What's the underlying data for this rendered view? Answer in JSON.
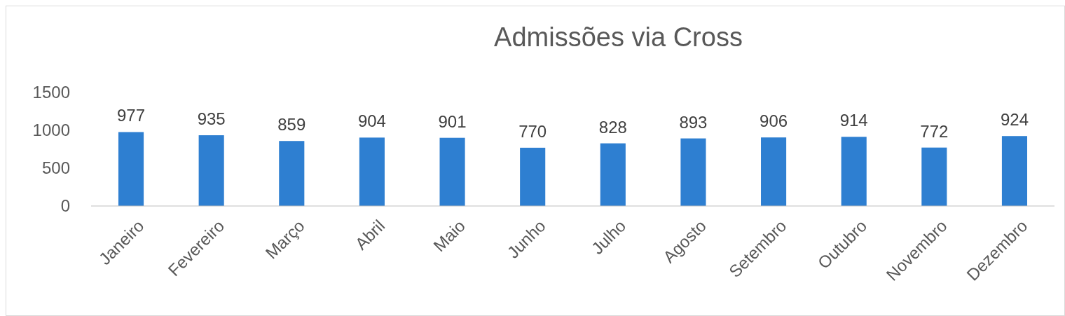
{
  "chart_data": {
    "type": "bar",
    "title": "Admissões via Cross",
    "categories": [
      "Janeiro",
      "Fevereiro",
      "Março",
      "Abril",
      "Maio",
      "Junho",
      "Julho",
      "Agosto",
      "Setembro",
      "Outubro",
      "Novembro",
      "Dezembro"
    ],
    "values": [
      977,
      935,
      859,
      904,
      901,
      770,
      828,
      893,
      906,
      914,
      772,
      924
    ],
    "color": "#2e7fd1",
    "ylim": [
      0,
      1500
    ],
    "yticks": [
      0,
      500,
      1000,
      1500
    ],
    "data_labels": true
  }
}
